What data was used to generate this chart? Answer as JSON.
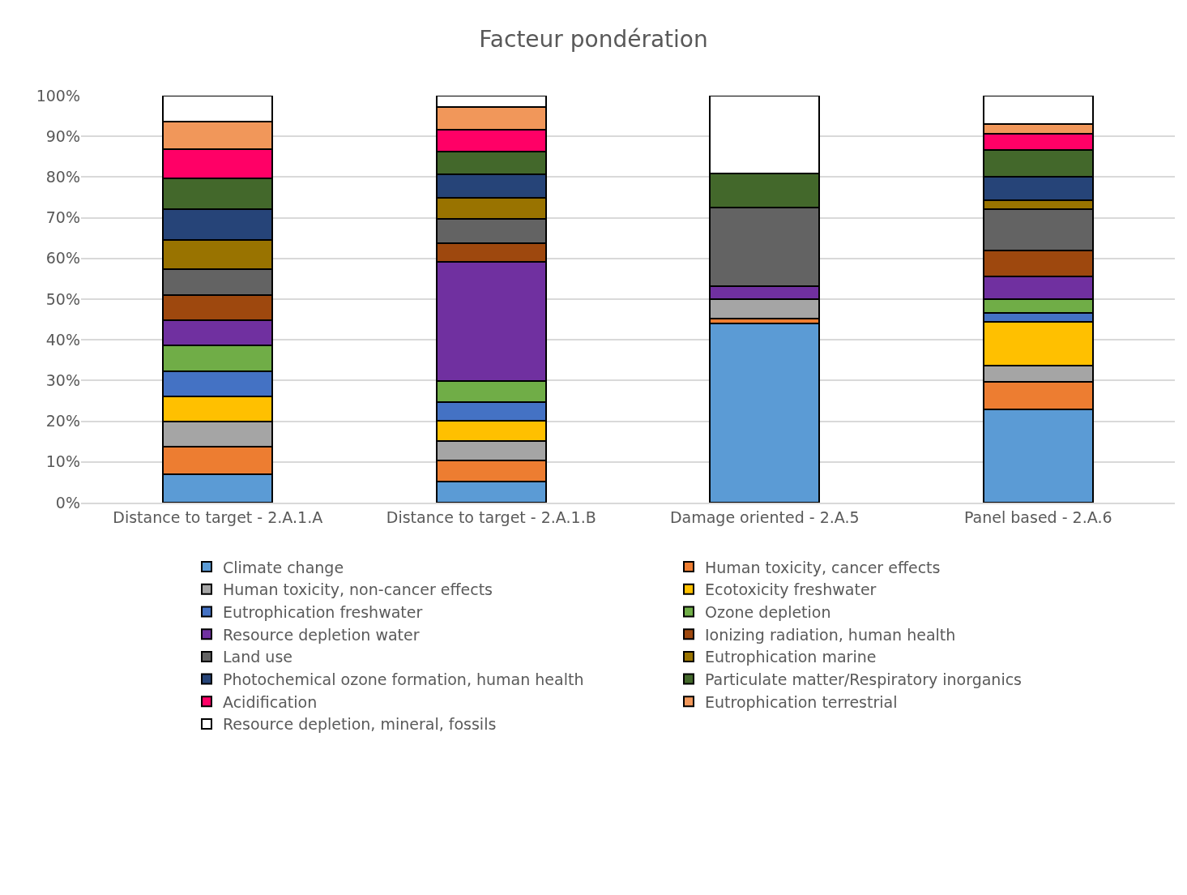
{
  "chart_data": {
    "type": "bar",
    "title": "Facteur pondération",
    "stacked": true,
    "categories": [
      "Distance to target - 2.A.1.A",
      "Distance to target - 2.A.1.B",
      "Damage oriented - 2.A.5",
      "Panel based - 2.A.6"
    ],
    "series": [
      {
        "name": "Climate change",
        "color": "#5b9bd5",
        "values": [
          7.0,
          5.2,
          44.0,
          22.9
        ]
      },
      {
        "name": "Human toxicity, cancer effects",
        "color": "#ed7d31",
        "values": [
          6.7,
          5.2,
          1.2,
          6.8
        ]
      },
      {
        "name": "Human toxicity, non-cancer effects",
        "color": "#a5a5a5",
        "values": [
          6.2,
          4.7,
          4.8,
          4.0
        ]
      },
      {
        "name": "Ecotoxicity freshwater",
        "color": "#ffc000",
        "values": [
          6.2,
          5.0,
          0,
          10.8
        ]
      },
      {
        "name": "Eutrophication freshwater",
        "color": "#4472c4",
        "values": [
          6.2,
          4.6,
          0,
          2.2
        ]
      },
      {
        "name": "Ozone depletion",
        "color": "#70ad47",
        "values": [
          6.3,
          5.2,
          0,
          3.4
        ]
      },
      {
        "name": "Resource depletion water",
        "color": "#7030a0",
        "values": [
          6.2,
          29.3,
          3.2,
          5.4
        ]
      },
      {
        "name": "Ionizing radiation, human health",
        "color": "#9e480e",
        "values": [
          6.2,
          4.5,
          0,
          6.4
        ]
      },
      {
        "name": "Land use",
        "color": "#636363",
        "values": [
          6.4,
          6.0,
          19.3,
          10.3
        ]
      },
      {
        "name": "Eutrophication marine",
        "color": "#997300",
        "values": [
          7.1,
          5.2,
          0,
          2.2
        ]
      },
      {
        "name": "Photochemical ozone formation, human health",
        "color": "#264478",
        "values": [
          7.6,
          5.8,
          0,
          5.6
        ]
      },
      {
        "name": "Particulate matter/Respiratory inorganics",
        "color": "#43682b",
        "values": [
          7.6,
          5.6,
          8.4,
          6.6
        ]
      },
      {
        "name": "Acidification",
        "color": "#ff0066",
        "values": [
          7.2,
          5.3,
          0,
          4.1
        ]
      },
      {
        "name": "Eutrophication terrestrial",
        "color": "#f1975a",
        "values": [
          6.7,
          5.6,
          0,
          2.3
        ]
      },
      {
        "name": "Resource depletion, mineral, fossils",
        "color": "#ffffff",
        "values": [
          6.4,
          2.8,
          19.1,
          7.0
        ]
      }
    ],
    "ylim": [
      0,
      100
    ],
    "yticks": [
      {
        "value": 0,
        "label": "0%"
      },
      {
        "value": 10,
        "label": "10%"
      },
      {
        "value": 20,
        "label": "20%"
      },
      {
        "value": 30,
        "label": "30%"
      },
      {
        "value": 40,
        "label": "40%"
      },
      {
        "value": 50,
        "label": "50%"
      },
      {
        "value": 60,
        "label": "60%"
      },
      {
        "value": 70,
        "label": "70%"
      },
      {
        "value": 80,
        "label": "80%"
      },
      {
        "value": 90,
        "label": "90%"
      },
      {
        "value": 100,
        "label": "100%"
      }
    ],
    "grid": "y",
    "legend": "bottom"
  }
}
